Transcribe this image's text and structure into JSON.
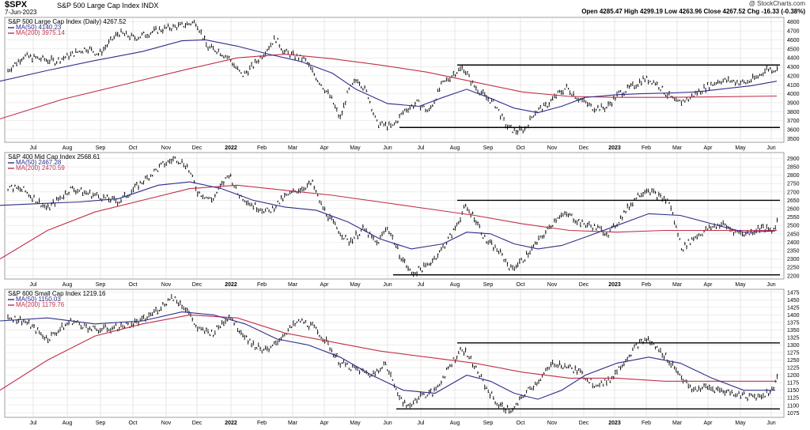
{
  "header": {
    "symbol": "$SPX",
    "description": "S&P 500 Large Cap Index  INDX",
    "date": "7-Jun-2023",
    "credit": "@ StockCharts.com",
    "quote": "Open 4285.47  High 4299.19  Low 4263.96  Close 4267.52  Chg -16.33 (-0.38%)"
  },
  "chart_data": [
    {
      "type": "ohlc",
      "title": "S&P 500 Large Cap Index (Daily) 4267.52",
      "legend": [
        {
          "label": "MA(50) 4140.23",
          "color": "#2e2e8c"
        },
        {
          "label": "MA(200) 3975.14",
          "color": "#c0304a"
        }
      ],
      "x_ticks": [
        "Jul",
        "Aug",
        "Sep",
        "Oct",
        "Nov",
        "Dec",
        "2022",
        "Feb",
        "Mar",
        "Apr",
        "May",
        "Jun",
        "Jul",
        "Aug",
        "Sep",
        "Oct",
        "Nov",
        "Dec",
        "2023",
        "Feb",
        "Mar",
        "Apr",
        "May",
        "Jun"
      ],
      "y_ticks": [
        3500,
        3600,
        3700,
        3800,
        3900,
        4000,
        4100,
        4200,
        4300,
        4400,
        4500,
        4600,
        4700,
        4800
      ],
      "ylim": [
        3460,
        4850
      ],
      "price_path": [
        [
          0,
          4180
        ],
        [
          30,
          4420
        ],
        [
          70,
          4360
        ],
        [
          110,
          4510
        ],
        [
          125,
          4440
        ],
        [
          150,
          4680
        ],
        [
          170,
          4620
        ],
        [
          200,
          4710
        ],
        [
          230,
          4760
        ],
        [
          248,
          4800
        ],
        [
          262,
          4520
        ],
        [
          276,
          4480
        ],
        [
          290,
          4390
        ],
        [
          306,
          4200
        ],
        [
          320,
          4310
        ],
        [
          335,
          4470
        ],
        [
          348,
          4620
        ],
        [
          360,
          4460
        ],
        [
          385,
          4380
        ],
        [
          400,
          4180
        ],
        [
          418,
          3960
        ],
        [
          430,
          3720
        ],
        [
          440,
          4020
        ],
        [
          452,
          4170
        ],
        [
          465,
          3990
        ],
        [
          476,
          3670
        ],
        [
          496,
          3630
        ],
        [
          512,
          3820
        ],
        [
          528,
          3900
        ],
        [
          542,
          3800
        ],
        [
          558,
          4090
        ],
        [
          574,
          4230
        ],
        [
          586,
          4290
        ],
        [
          598,
          4100
        ],
        [
          612,
          3980
        ],
        [
          626,
          3880
        ],
        [
          640,
          3640
        ],
        [
          652,
          3580
        ],
        [
          664,
          3610
        ],
        [
          676,
          3800
        ],
        [
          690,
          3860
        ],
        [
          702,
          3970
        ],
        [
          716,
          4070
        ],
        [
          730,
          3960
        ],
        [
          748,
          3850
        ],
        [
          766,
          3840
        ],
        [
          782,
          4000
        ],
        [
          800,
          4080
        ],
        [
          814,
          4170
        ],
        [
          828,
          4130
        ],
        [
          842,
          4000
        ],
        [
          856,
          3900
        ],
        [
          870,
          3940
        ],
        [
          882,
          4020
        ],
        [
          896,
          4090
        ],
        [
          910,
          4150
        ],
        [
          926,
          4140
        ],
        [
          942,
          4120
        ],
        [
          958,
          4190
        ],
        [
          970,
          4280
        ],
        [
          982,
          4267
        ]
      ],
      "ma50": [
        [
          0,
          4140
        ],
        [
          60,
          4260
        ],
        [
          120,
          4370
        ],
        [
          180,
          4470
        ],
        [
          230,
          4590
        ],
        [
          260,
          4600
        ],
        [
          300,
          4530
        ],
        [
          340,
          4440
        ],
        [
          380,
          4360
        ],
        [
          420,
          4230
        ],
        [
          450,
          4050
        ],
        [
          490,
          3890
        ],
        [
          530,
          3860
        ],
        [
          560,
          3960
        ],
        [
          590,
          4050
        ],
        [
          620,
          3950
        ],
        [
          650,
          3840
        ],
        [
          680,
          3790
        ],
        [
          710,
          3860
        ],
        [
          740,
          3960
        ],
        [
          780,
          3990
        ],
        [
          810,
          4000
        ],
        [
          850,
          4010
        ],
        [
          880,
          4020
        ],
        [
          910,
          4050
        ],
        [
          950,
          4090
        ],
        [
          982,
          4140
        ]
      ],
      "ma200": [
        [
          0,
          3720
        ],
        [
          80,
          3940
        ],
        [
          160,
          4110
        ],
        [
          240,
          4280
        ],
        [
          300,
          4400
        ],
        [
          360,
          4440
        ],
        [
          420,
          4390
        ],
        [
          480,
          4320
        ],
        [
          540,
          4240
        ],
        [
          600,
          4130
        ],
        [
          660,
          4020
        ],
        [
          720,
          3970
        ],
        [
          780,
          3960
        ],
        [
          840,
          3960
        ],
        [
          900,
          3965
        ],
        [
          982,
          3975
        ]
      ],
      "levels": [
        {
          "value": 4320,
          "x_from": 578,
          "x_to": 986
        },
        {
          "value": 3625,
          "x_from": 505,
          "x_to": 986
        }
      ]
    },
    {
      "type": "ohlc",
      "title": "S&P 400 Mid Cap Index 2568.61",
      "legend": [
        {
          "label": "MA(50) 2467.28",
          "color": "#2e2e8c"
        },
        {
          "label": "MA(200) 2470.59",
          "color": "#c0304a"
        }
      ],
      "x_ticks": [
        "Jul",
        "Aug",
        "Sep",
        "Oct",
        "Nov",
        "Dec",
        "2022",
        "Feb",
        "Mar",
        "Apr",
        "May",
        "Jun",
        "Jul",
        "Aug",
        "Sep",
        "Oct",
        "Nov",
        "Dec",
        "2023",
        "Feb",
        "Mar",
        "Apr",
        "May",
        "Jun"
      ],
      "y_ticks": [
        2200,
        2250,
        2300,
        2350,
        2400,
        2450,
        2500,
        2550,
        2600,
        2650,
        2700,
        2750,
        2800,
        2850,
        2900
      ],
      "ylim": [
        2180,
        2935
      ],
      "price_path": [
        [
          0,
          2740
        ],
        [
          30,
          2710
        ],
        [
          60,
          2600
        ],
        [
          90,
          2720
        ],
        [
          120,
          2680
        ],
        [
          150,
          2640
        ],
        [
          180,
          2760
        ],
        [
          205,
          2860
        ],
        [
          222,
          2900
        ],
        [
          236,
          2860
        ],
        [
          250,
          2700
        ],
        [
          268,
          2650
        ],
        [
          290,
          2810
        ],
        [
          300,
          2690
        ],
        [
          320,
          2620
        ],
        [
          340,
          2580
        ],
        [
          360,
          2670
        ],
        [
          380,
          2720
        ],
        [
          395,
          2750
        ],
        [
          405,
          2630
        ],
        [
          420,
          2520
        ],
        [
          440,
          2400
        ],
        [
          460,
          2480
        ],
        [
          476,
          2390
        ],
        [
          490,
          2490
        ],
        [
          505,
          2330
        ],
        [
          520,
          2210
        ],
        [
          540,
          2260
        ],
        [
          556,
          2340
        ],
        [
          574,
          2470
        ],
        [
          588,
          2610
        ],
        [
          600,
          2550
        ],
        [
          614,
          2410
        ],
        [
          630,
          2350
        ],
        [
          646,
          2240
        ],
        [
          660,
          2290
        ],
        [
          676,
          2380
        ],
        [
          690,
          2460
        ],
        [
          706,
          2560
        ],
        [
          720,
          2560
        ],
        [
          736,
          2510
        ],
        [
          752,
          2490
        ],
        [
          770,
          2450
        ],
        [
          790,
          2580
        ],
        [
          806,
          2680
        ],
        [
          818,
          2720
        ],
        [
          830,
          2680
        ],
        [
          846,
          2640
        ],
        [
          862,
          2360
        ],
        [
          878,
          2430
        ],
        [
          896,
          2480
        ],
        [
          912,
          2510
        ],
        [
          930,
          2460
        ],
        [
          946,
          2450
        ],
        [
          962,
          2490
        ],
        [
          976,
          2460
        ],
        [
          986,
          2568
        ]
      ],
      "ma50": [
        [
          0,
          2620
        ],
        [
          50,
          2630
        ],
        [
          100,
          2640
        ],
        [
          150,
          2660
        ],
        [
          200,
          2740
        ],
        [
          240,
          2760
        ],
        [
          280,
          2720
        ],
        [
          320,
          2650
        ],
        [
          360,
          2610
        ],
        [
          400,
          2590
        ],
        [
          440,
          2520
        ],
        [
          480,
          2420
        ],
        [
          520,
          2360
        ],
        [
          560,
          2390
        ],
        [
          590,
          2460
        ],
        [
          620,
          2450
        ],
        [
          650,
          2390
        ],
        [
          680,
          2360
        ],
        [
          710,
          2380
        ],
        [
          740,
          2430
        ],
        [
          780,
          2500
        ],
        [
          820,
          2570
        ],
        [
          860,
          2560
        ],
        [
          900,
          2510
        ],
        [
          940,
          2460
        ],
        [
          980,
          2467
        ]
      ],
      "ma200": [
        [
          0,
          2300
        ],
        [
          60,
          2470
        ],
        [
          120,
          2580
        ],
        [
          180,
          2650
        ],
        [
          240,
          2720
        ],
        [
          300,
          2740
        ],
        [
          360,
          2710
        ],
        [
          420,
          2680
        ],
        [
          480,
          2640
        ],
        [
          540,
          2600
        ],
        [
          600,
          2560
        ],
        [
          660,
          2510
        ],
        [
          720,
          2470
        ],
        [
          780,
          2460
        ],
        [
          840,
          2470
        ],
        [
          900,
          2470
        ],
        [
          982,
          2470
        ]
      ],
      "levels": [
        {
          "value": 2650,
          "x_from": 578,
          "x_to": 986
        },
        {
          "value": 2205,
          "x_from": 497,
          "x_to": 986
        }
      ]
    },
    {
      "type": "ohlc",
      "title": "S&P 600 Small Cap Index 1219.16",
      "legend": [
        {
          "label": "MA(50) 1150.03",
          "color": "#2e2e8c"
        },
        {
          "label": "MA(200) 1179.76",
          "color": "#c0304a"
        }
      ],
      "x_ticks": [
        "Jul",
        "Aug",
        "Sep",
        "Oct",
        "Nov",
        "Dec",
        "2022",
        "Feb",
        "Mar",
        "Apr",
        "May",
        "Jun",
        "Jul",
        "Aug",
        "Sep",
        "Oct",
        "Nov",
        "Dec",
        "2023",
        "Feb",
        "Mar",
        "Apr",
        "May",
        "Jun"
      ],
      "y_ticks": [
        1075,
        1100,
        1125,
        1150,
        1175,
        1200,
        1225,
        1250,
        1275,
        1300,
        1325,
        1350,
        1375,
        1400,
        1425,
        1450,
        1475
      ],
      "ylim": [
        1060,
        1485
      ],
      "price_path": [
        [
          0,
          1400
        ],
        [
          30,
          1380
        ],
        [
          60,
          1320
        ],
        [
          90,
          1380
        ],
        [
          120,
          1350
        ],
        [
          150,
          1360
        ],
        [
          180,
          1380
        ],
        [
          200,
          1420
        ],
        [
          218,
          1460
        ],
        [
          236,
          1420
        ],
        [
          250,
          1350
        ],
        [
          270,
          1340
        ],
        [
          290,
          1400
        ],
        [
          300,
          1360
        ],
        [
          320,
          1300
        ],
        [
          340,
          1280
        ],
        [
          360,
          1340
        ],
        [
          380,
          1380
        ],
        [
          395,
          1360
        ],
        [
          410,
          1320
        ],
        [
          430,
          1240
        ],
        [
          450,
          1220
        ],
        [
          470,
          1200
        ],
        [
          486,
          1240
        ],
        [
          500,
          1160
        ],
        [
          514,
          1090
        ],
        [
          530,
          1130
        ],
        [
          548,
          1140
        ],
        [
          566,
          1220
        ],
        [
          584,
          1290
        ],
        [
          598,
          1240
        ],
        [
          614,
          1160
        ],
        [
          630,
          1100
        ],
        [
          648,
          1080
        ],
        [
          664,
          1140
        ],
        [
          680,
          1180
        ],
        [
          700,
          1240
        ],
        [
          716,
          1230
        ],
        [
          732,
          1210
        ],
        [
          752,
          1170
        ],
        [
          770,
          1180
        ],
        [
          790,
          1250
        ],
        [
          806,
          1300
        ],
        [
          818,
          1320
        ],
        [
          830,
          1290
        ],
        [
          846,
          1250
        ],
        [
          860,
          1200
        ],
        [
          874,
          1150
        ],
        [
          892,
          1160
        ],
        [
          910,
          1150
        ],
        [
          928,
          1140
        ],
        [
          946,
          1130
        ],
        [
          962,
          1130
        ],
        [
          976,
          1150
        ],
        [
          986,
          1219
        ]
      ],
      "ma50": [
        [
          0,
          1380
        ],
        [
          60,
          1390
        ],
        [
          120,
          1370
        ],
        [
          180,
          1380
        ],
        [
          230,
          1410
        ],
        [
          270,
          1400
        ],
        [
          310,
          1370
        ],
        [
          350,
          1320
        ],
        [
          390,
          1300
        ],
        [
          430,
          1260
        ],
        [
          470,
          1200
        ],
        [
          510,
          1150
        ],
        [
          550,
          1140
        ],
        [
          590,
          1200
        ],
        [
          620,
          1180
        ],
        [
          650,
          1140
        ],
        [
          680,
          1120
        ],
        [
          710,
          1150
        ],
        [
          740,
          1200
        ],
        [
          780,
          1240
        ],
        [
          820,
          1260
        ],
        [
          860,
          1240
        ],
        [
          900,
          1190
        ],
        [
          940,
          1150
        ],
        [
          980,
          1150
        ]
      ],
      "ma200": [
        [
          0,
          1150
        ],
        [
          60,
          1250
        ],
        [
          120,
          1330
        ],
        [
          180,
          1370
        ],
        [
          240,
          1400
        ],
        [
          300,
          1390
        ],
        [
          360,
          1340
        ],
        [
          420,
          1310
        ],
        [
          480,
          1280
        ],
        [
          540,
          1260
        ],
        [
          600,
          1240
        ],
        [
          660,
          1210
        ],
        [
          720,
          1190
        ],
        [
          780,
          1190
        ],
        [
          840,
          1180
        ],
        [
          900,
          1180
        ],
        [
          982,
          1180
        ]
      ],
      "levels": [
        {
          "value": 1307,
          "x_from": 578,
          "x_to": 986
        },
        {
          "value": 1088,
          "x_from": 501,
          "x_to": 986
        }
      ]
    }
  ]
}
